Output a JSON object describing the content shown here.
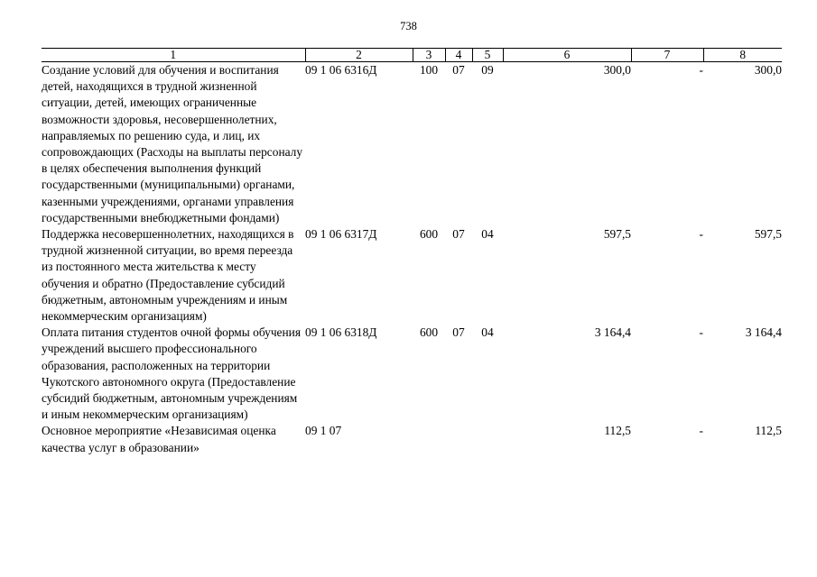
{
  "page_number": "738",
  "headers": [
    "1",
    "2",
    "3",
    "4",
    "5",
    "6",
    "7",
    "8"
  ],
  "rows": [
    {
      "description": "Создание условий для обучения и воспитания детей, находящихся в трудной жизненной ситуации, детей, имеющих ограниченные возможности здоровья, несовершеннолетних, направляемых по решению суда, и лиц, их сопровождающих (Расходы на выплаты персоналу в целях обеспечения выполнения функций государственными (муниципальными) органами, казенными учреждениями, органами управления государственными внебюджетными фондами)",
      "code": "09 1 06 6316Д",
      "c3": "100",
      "c4": "07",
      "c5": "09",
      "c6": "300,0",
      "c7": "-",
      "c8": "300,0"
    },
    {
      "description": "Поддержка несовершеннолетних, находящихся в трудной жизненной ситуации, во время переезда из постоянного места жительства к месту обучения и обратно (Предоставление субсидий бюджетным, автономным учреждениям и иным некоммерческим организациям)",
      "code": "09 1 06 6317Д",
      "c3": "600",
      "c4": "07",
      "c5": "04",
      "c6": "597,5",
      "c7": "-",
      "c8": "597,5"
    },
    {
      "description": "Оплата питания студентов очной формы обучения учреждений высшего профессионального образования, расположенных на территории Чукотского автономного округа (Предоставление субсидий бюджетным, автономным учреждениям и иным некоммерческим организациям)",
      "code": "09 1 06 6318Д",
      "c3": "600",
      "c4": "07",
      "c5": "04",
      "c6": "3 164,4",
      "c7": "-",
      "c8": "3 164,4"
    },
    {
      "description": "Основное мероприятие «Независимая оценка качества услуг в образовании»",
      "code": "09 1 07",
      "c3": "",
      "c4": "",
      "c5": "",
      "c6": "112,5",
      "c7": "-",
      "c8": "112,5"
    }
  ]
}
